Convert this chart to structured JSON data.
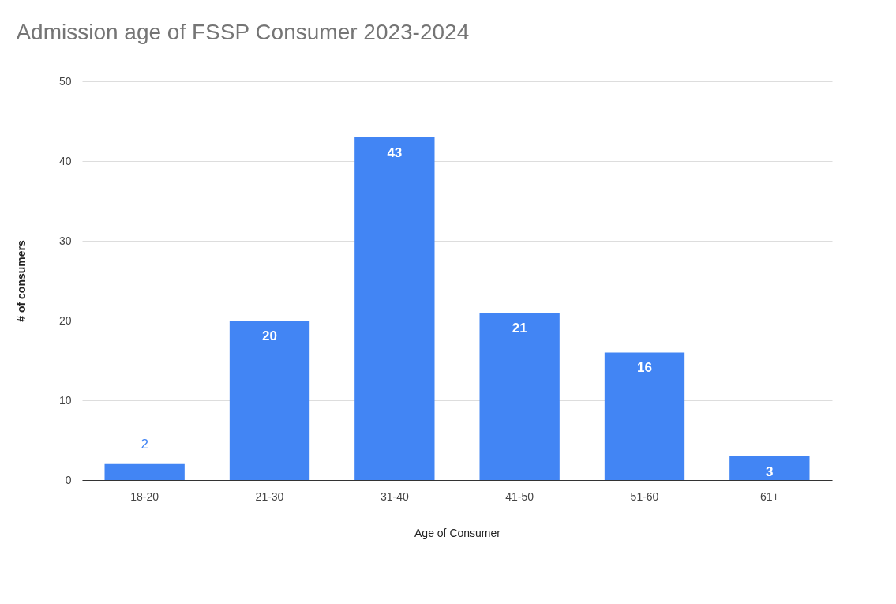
{
  "chart_data": {
    "type": "bar",
    "title": "Admission age of FSSP Consumer 2023-2024",
    "xlabel": "Age of Consumer",
    "ylabel": "# of consumers",
    "categories": [
      "18-20",
      "21-30",
      "31-40",
      "41-50",
      "51-60",
      "61+"
    ],
    "values": [
      2,
      20,
      43,
      21,
      16,
      3
    ],
    "color": "#4285f4",
    "ylim": [
      0,
      50
    ],
    "yticks": [
      0,
      10,
      20,
      30,
      40,
      50
    ],
    "grid": "y",
    "data_labels": true
  }
}
